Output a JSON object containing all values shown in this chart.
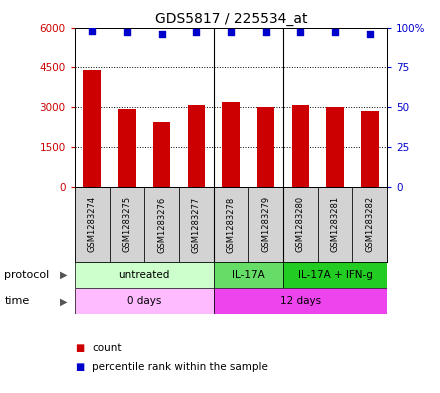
{
  "title": "GDS5817 / 225534_at",
  "samples": [
    "GSM1283274",
    "GSM1283275",
    "GSM1283276",
    "GSM1283277",
    "GSM1283278",
    "GSM1283279",
    "GSM1283280",
    "GSM1283281",
    "GSM1283282"
  ],
  "counts": [
    4400,
    2950,
    2450,
    3100,
    3200,
    3000,
    3100,
    3000,
    2850
  ],
  "percentiles": [
    98,
    97,
    96,
    97,
    97,
    97,
    97,
    97,
    96
  ],
  "bar_color": "#cc0000",
  "dot_color": "#0000cc",
  "ylim_left": [
    0,
    6000
  ],
  "ylim_right": [
    0,
    100
  ],
  "yticks_left": [
    0,
    1500,
    3000,
    4500,
    6000
  ],
  "yticks_right": [
    0,
    25,
    50,
    75,
    100
  ],
  "yticklabels_right": [
    "0",
    "25",
    "50",
    "75",
    "100%"
  ],
  "protocol_groups": [
    {
      "label": "untreated",
      "start": 0,
      "end": 4,
      "color": "#ccffcc"
    },
    {
      "label": "IL-17A",
      "start": 4,
      "end": 6,
      "color": "#66dd66"
    },
    {
      "label": "IL-17A + IFN-g",
      "start": 6,
      "end": 9,
      "color": "#22cc22"
    }
  ],
  "time_groups": [
    {
      "label": "0 days",
      "start": 0,
      "end": 4,
      "color": "#ffbbff"
    },
    {
      "label": "12 days",
      "start": 4,
      "end": 9,
      "color": "#ee44ee"
    }
  ],
  "group_dividers": [
    3.5,
    5.5
  ],
  "protocol_label": "protocol",
  "time_label": "time",
  "legend_count_label": "count",
  "legend_pct_label": "percentile rank within the sample",
  "sample_box_color": "#d3d3d3",
  "tick_color_left": "#cc0000",
  "tick_color_right": "#0000cc",
  "title_fontsize": 10,
  "bar_width": 0.5
}
